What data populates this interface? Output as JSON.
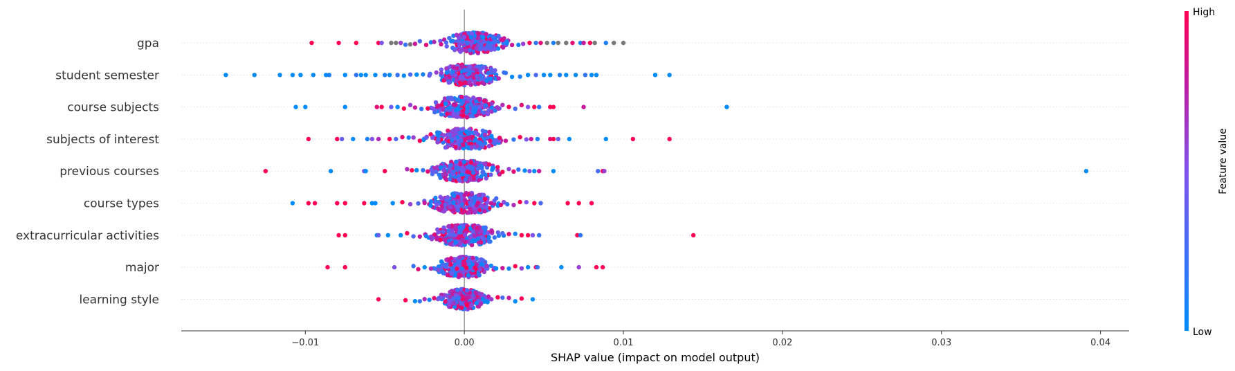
{
  "chart_data": {
    "type": "scatter",
    "subtype": "shap-beeswarm",
    "xlabel": "SHAP value (impact on model output)",
    "xlim": [
      -0.0178,
      0.0418
    ],
    "xticks": [
      -0.01,
      0.0,
      0.01,
      0.02,
      0.03,
      0.04
    ],
    "xtick_labels": [
      "−0.01",
      "0.00",
      "0.01",
      "0.02",
      "0.03",
      "0.04"
    ],
    "colorbar": {
      "label": "Feature value",
      "high_label": "High",
      "low_label": "Low",
      "low_color": "#008bfb",
      "high_color": "#ff0052"
    },
    "features": [
      {
        "name": "gpa",
        "core_spread": 0.0016,
        "core_center": 0.0007,
        "points": [
          [
            -0.0096,
            1
          ],
          [
            -0.0079,
            1
          ],
          [
            -0.0068,
            1
          ],
          [
            -0.0054,
            1
          ],
          [
            -0.0052,
            0.5
          ],
          [
            -0.0046,
            null
          ],
          [
            -0.0043,
            null
          ],
          [
            -0.004,
            0.6
          ],
          [
            -0.0037,
            0.2
          ],
          [
            -0.0034,
            null
          ],
          [
            -0.0031,
            0.8
          ],
          [
            -0.0028,
            0.3
          ],
          [
            -0.0024,
            0.9
          ],
          [
            -0.0021,
            0.1
          ],
          [
            -0.0019,
            0.7
          ],
          [
            0.003,
            0.8
          ],
          [
            0.0034,
            0.1
          ],
          [
            0.0037,
            0.6
          ],
          [
            0.0041,
            1
          ],
          [
            0.0045,
            0.2
          ],
          [
            0.0048,
            0.9
          ],
          [
            0.0052,
            null
          ],
          [
            0.0056,
            0.1
          ],
          [
            0.0059,
            null
          ],
          [
            0.0064,
            null
          ],
          [
            0.0068,
            0.9
          ],
          [
            0.0073,
            0.1
          ],
          [
            0.0075,
            0.8
          ],
          [
            0.0079,
            1
          ],
          [
            0.0082,
            null
          ],
          [
            0.0089,
            0.1
          ],
          [
            0.0094,
            null
          ],
          [
            0.01,
            null
          ]
        ]
      },
      {
        "name": "student semester",
        "core_spread": 0.0017,
        "core_center": 0.0002,
        "points": [
          [
            -0.015,
            0
          ],
          [
            -0.0132,
            0
          ],
          [
            -0.0116,
            0
          ],
          [
            -0.0108,
            0
          ],
          [
            -0.0103,
            0
          ],
          [
            -0.0095,
            0
          ],
          [
            -0.0087,
            0
          ],
          [
            -0.0085,
            0.1
          ],
          [
            -0.0075,
            0
          ],
          [
            -0.0068,
            0.2
          ],
          [
            -0.0065,
            0
          ],
          [
            -0.0062,
            0
          ],
          [
            -0.0056,
            0
          ],
          [
            -0.005,
            0.1
          ],
          [
            -0.0047,
            0
          ],
          [
            -0.0042,
            0.2
          ],
          [
            -0.0038,
            0
          ],
          [
            -0.0034,
            0.3
          ],
          [
            -0.003,
            0
          ],
          [
            -0.0026,
            0.1
          ],
          [
            -0.0022,
            0.4
          ],
          [
            0.0026,
            0.2
          ],
          [
            0.003,
            0
          ],
          [
            0.0035,
            0.1
          ],
          [
            0.004,
            0
          ],
          [
            0.0045,
            0.3
          ],
          [
            0.005,
            0
          ],
          [
            0.0054,
            0
          ],
          [
            0.006,
            0.1
          ],
          [
            0.0064,
            0
          ],
          [
            0.007,
            0
          ],
          [
            0.0076,
            0.2
          ],
          [
            0.008,
            0
          ],
          [
            0.0083,
            0
          ],
          [
            0.012,
            0
          ],
          [
            0.0129,
            0
          ]
        ]
      },
      {
        "name": "course subjects",
        "core_spread": 0.0018,
        "core_center": 0.0,
        "points": [
          [
            -0.0106,
            0
          ],
          [
            -0.01,
            0
          ],
          [
            -0.0075,
            0
          ],
          [
            -0.0055,
            0.9
          ],
          [
            -0.0052,
            1
          ],
          [
            -0.0046,
            0.4
          ],
          [
            -0.0042,
            0
          ],
          [
            -0.0038,
            1
          ],
          [
            -0.0034,
            0.6
          ],
          [
            -0.0031,
            0.8
          ],
          [
            -0.0027,
            0.2
          ],
          [
            -0.0023,
            1
          ],
          [
            -0.002,
            0.5
          ],
          [
            0.0024,
            0.7
          ],
          [
            0.0028,
            1
          ],
          [
            0.0032,
            0.3
          ],
          [
            0.0036,
            0.9
          ],
          [
            0.004,
            0.5
          ],
          [
            0.0044,
            1
          ],
          [
            0.0047,
            0.2
          ],
          [
            0.0054,
            1
          ],
          [
            0.0056,
            1
          ],
          [
            0.0075,
            0.8
          ],
          [
            0.0165,
            0
          ]
        ]
      },
      {
        "name": "subjects of interest",
        "core_spread": 0.0019,
        "core_center": 0.0,
        "points": [
          [
            -0.0098,
            1
          ],
          [
            -0.008,
            1
          ],
          [
            -0.0077,
            0.4
          ],
          [
            -0.007,
            0
          ],
          [
            -0.0061,
            0.1
          ],
          [
            -0.0058,
            0.5
          ],
          [
            -0.0054,
            0.7
          ],
          [
            -0.0047,
            1
          ],
          [
            -0.0043,
            0.3
          ],
          [
            -0.0039,
            0.9
          ],
          [
            -0.0035,
            0.1
          ],
          [
            -0.0032,
            0.6
          ],
          [
            -0.0028,
            1
          ],
          [
            -0.0024,
            0.4
          ],
          [
            0.0026,
            0.8
          ],
          [
            0.0031,
            0.2
          ],
          [
            0.0035,
            1
          ],
          [
            0.0039,
            0.5
          ],
          [
            0.0042,
            0.8
          ],
          [
            0.0046,
            0.1
          ],
          [
            0.0054,
            0.9
          ],
          [
            0.0056,
            1
          ],
          [
            0.0059,
            0.4
          ],
          [
            0.0066,
            0
          ],
          [
            0.0089,
            0
          ],
          [
            0.0106,
            1
          ],
          [
            0.0129,
            1
          ]
        ]
      },
      {
        "name": "previous courses",
        "core_spread": 0.0017,
        "core_center": 0.0,
        "points": [
          [
            -0.0125,
            1
          ],
          [
            -0.0084,
            0
          ],
          [
            -0.0063,
            0.5
          ],
          [
            -0.0062,
            0
          ],
          [
            -0.005,
            1
          ],
          [
            -0.0036,
            0.7
          ],
          [
            -0.0033,
            1
          ],
          [
            -0.003,
            0
          ],
          [
            -0.0026,
            0.2
          ],
          [
            -0.0023,
            0.9
          ],
          [
            -0.002,
            0.4
          ],
          [
            0.0024,
            1
          ],
          [
            0.0028,
            0.6
          ],
          [
            0.0031,
            0.9
          ],
          [
            0.0034,
            0.2
          ],
          [
            0.0038,
            0
          ],
          [
            0.0041,
            0.5
          ],
          [
            0.0044,
            0
          ],
          [
            0.0047,
            0.8
          ],
          [
            0.0056,
            0
          ],
          [
            0.0084,
            0.3
          ],
          [
            0.0087,
            1
          ],
          [
            0.0088,
            0.6
          ],
          [
            0.0391,
            0
          ]
        ]
      },
      {
        "name": "course types",
        "core_spread": 0.0018,
        "core_center": 0.0,
        "points": [
          [
            -0.0108,
            0
          ],
          [
            -0.0098,
            1
          ],
          [
            -0.0094,
            1
          ],
          [
            -0.008,
            1
          ],
          [
            -0.0075,
            1
          ],
          [
            -0.0063,
            1
          ],
          [
            -0.0058,
            0
          ],
          [
            -0.0056,
            0
          ],
          [
            -0.0045,
            0
          ],
          [
            -0.0039,
            1
          ],
          [
            -0.0034,
            0.6
          ],
          [
            -0.0029,
            0.3
          ],
          [
            -0.0025,
            0.8
          ],
          [
            -0.0021,
            0.1
          ],
          [
            0.0023,
            0.9
          ],
          [
            0.0027,
            0.2
          ],
          [
            0.0031,
            0.7
          ],
          [
            0.0035,
            1
          ],
          [
            0.0039,
            0.5
          ],
          [
            0.0044,
            1
          ],
          [
            0.0048,
            0.3
          ],
          [
            0.0065,
            1
          ],
          [
            0.0072,
            1
          ],
          [
            0.008,
            1
          ]
        ]
      },
      {
        "name": "extracurricular activities",
        "core_spread": 0.0017,
        "core_center": 0.0,
        "points": [
          [
            -0.0079,
            1
          ],
          [
            -0.0075,
            1
          ],
          [
            -0.0055,
            0
          ],
          [
            -0.0054,
            0.4
          ],
          [
            -0.0048,
            0
          ],
          [
            -0.004,
            0
          ],
          [
            -0.0036,
            1
          ],
          [
            -0.0032,
            0.3
          ],
          [
            -0.0028,
            0.8
          ],
          [
            -0.0024,
            0.1
          ],
          [
            -0.0021,
            0.6
          ],
          [
            0.0024,
            0.3
          ],
          [
            0.0028,
            0.9
          ],
          [
            0.0032,
            0.1
          ],
          [
            0.0036,
            1
          ],
          [
            0.004,
            1
          ],
          [
            0.0043,
            0.5
          ],
          [
            0.0047,
            0.2
          ],
          [
            0.0071,
            1
          ],
          [
            0.0073,
            0.2
          ],
          [
            0.0144,
            1
          ]
        ]
      },
      {
        "name": "major",
        "core_spread": 0.0014,
        "core_center": 0.0,
        "points": [
          [
            -0.0086,
            1
          ],
          [
            -0.0075,
            1
          ],
          [
            -0.0044,
            0.5
          ],
          [
            -0.0032,
            0.2
          ],
          [
            -0.0029,
            0.9
          ],
          [
            -0.0025,
            0
          ],
          [
            -0.0021,
            0.7
          ],
          [
            -0.0018,
            0.3
          ],
          [
            0.002,
            0
          ],
          [
            0.0024,
            0.8
          ],
          [
            0.0028,
            0.1
          ],
          [
            0.0032,
            1
          ],
          [
            0.0036,
            0.6
          ],
          [
            0.004,
            0
          ],
          [
            0.0045,
            0.9
          ],
          [
            0.0046,
            0.2
          ],
          [
            0.0061,
            0
          ],
          [
            0.0072,
            0.6
          ],
          [
            0.0083,
            1
          ],
          [
            0.0087,
            1
          ]
        ]
      },
      {
        "name": "learning style",
        "core_spread": 0.0012,
        "core_center": 0.0,
        "points": [
          [
            -0.0054,
            1
          ],
          [
            -0.0037,
            1
          ],
          [
            -0.0031,
            0
          ],
          [
            -0.0028,
            0.2
          ],
          [
            -0.0025,
            0.7
          ],
          [
            -0.0022,
            0.1
          ],
          [
            -0.0019,
            0.9
          ],
          [
            -0.0016,
            0.4
          ],
          [
            0.0017,
            0.6
          ],
          [
            0.0021,
            1
          ],
          [
            0.0024,
            0.3
          ],
          [
            0.0028,
            0.8
          ],
          [
            0.0032,
            0
          ],
          [
            0.0036,
            1
          ],
          [
            0.0043,
            0
          ]
        ]
      }
    ]
  }
}
